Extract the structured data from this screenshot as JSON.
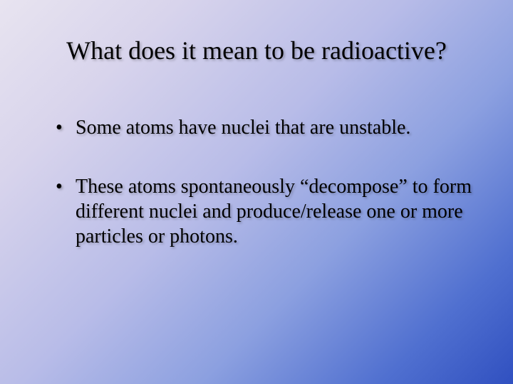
{
  "slide": {
    "title": "What does it mean to be radioactive?",
    "bullets": [
      "Some atoms have nuclei that are unstable.",
      "These atoms spontaneously “decompose” to form different nuclei and produce/release one or more particles or photons."
    ]
  },
  "style": {
    "background_gradient": [
      "#e8e4f0",
      "#d8d4ec",
      "#b8bce8",
      "#8ca0e0",
      "#5070d0",
      "#3050c0"
    ],
    "gradient_angle_deg": 135,
    "font_family": "Times New Roman",
    "title_fontsize": 36,
    "bullet_fontsize": 28,
    "text_color": "#000000",
    "text_shadow": "2px 2px 3px rgba(0,0,0,0.25)"
  }
}
